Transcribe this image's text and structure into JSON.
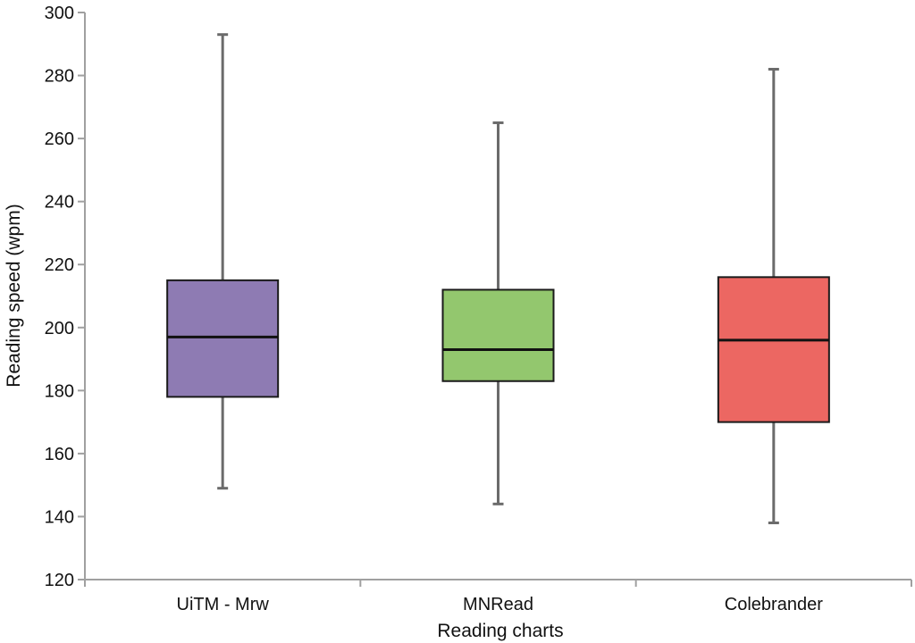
{
  "chart_data": {
    "type": "box",
    "title": "",
    "xlabel": "Reading charts",
    "ylabel": "Reading speed (wpm)",
    "ylim": [
      120,
      300
    ],
    "yticks": [
      120,
      140,
      160,
      180,
      200,
      220,
      240,
      260,
      280,
      300
    ],
    "grid": false,
    "categories": [
      "UiTM - Mrw",
      "MNRead",
      "Colebrander"
    ],
    "boxes": [
      {
        "category": "UiTM - Mrw",
        "min": 149,
        "q1": 178,
        "median": 197,
        "q3": 215,
        "max": 293,
        "color": "#8E7BB3"
      },
      {
        "category": "MNRead",
        "min": 144,
        "q1": 183,
        "median": 193,
        "q3": 212,
        "max": 265,
        "color": "#93C76E"
      },
      {
        "category": "Colebrander",
        "min": 138,
        "q1": 170,
        "median": 196,
        "q3": 216,
        "max": 282,
        "color": "#EC6762"
      }
    ]
  }
}
